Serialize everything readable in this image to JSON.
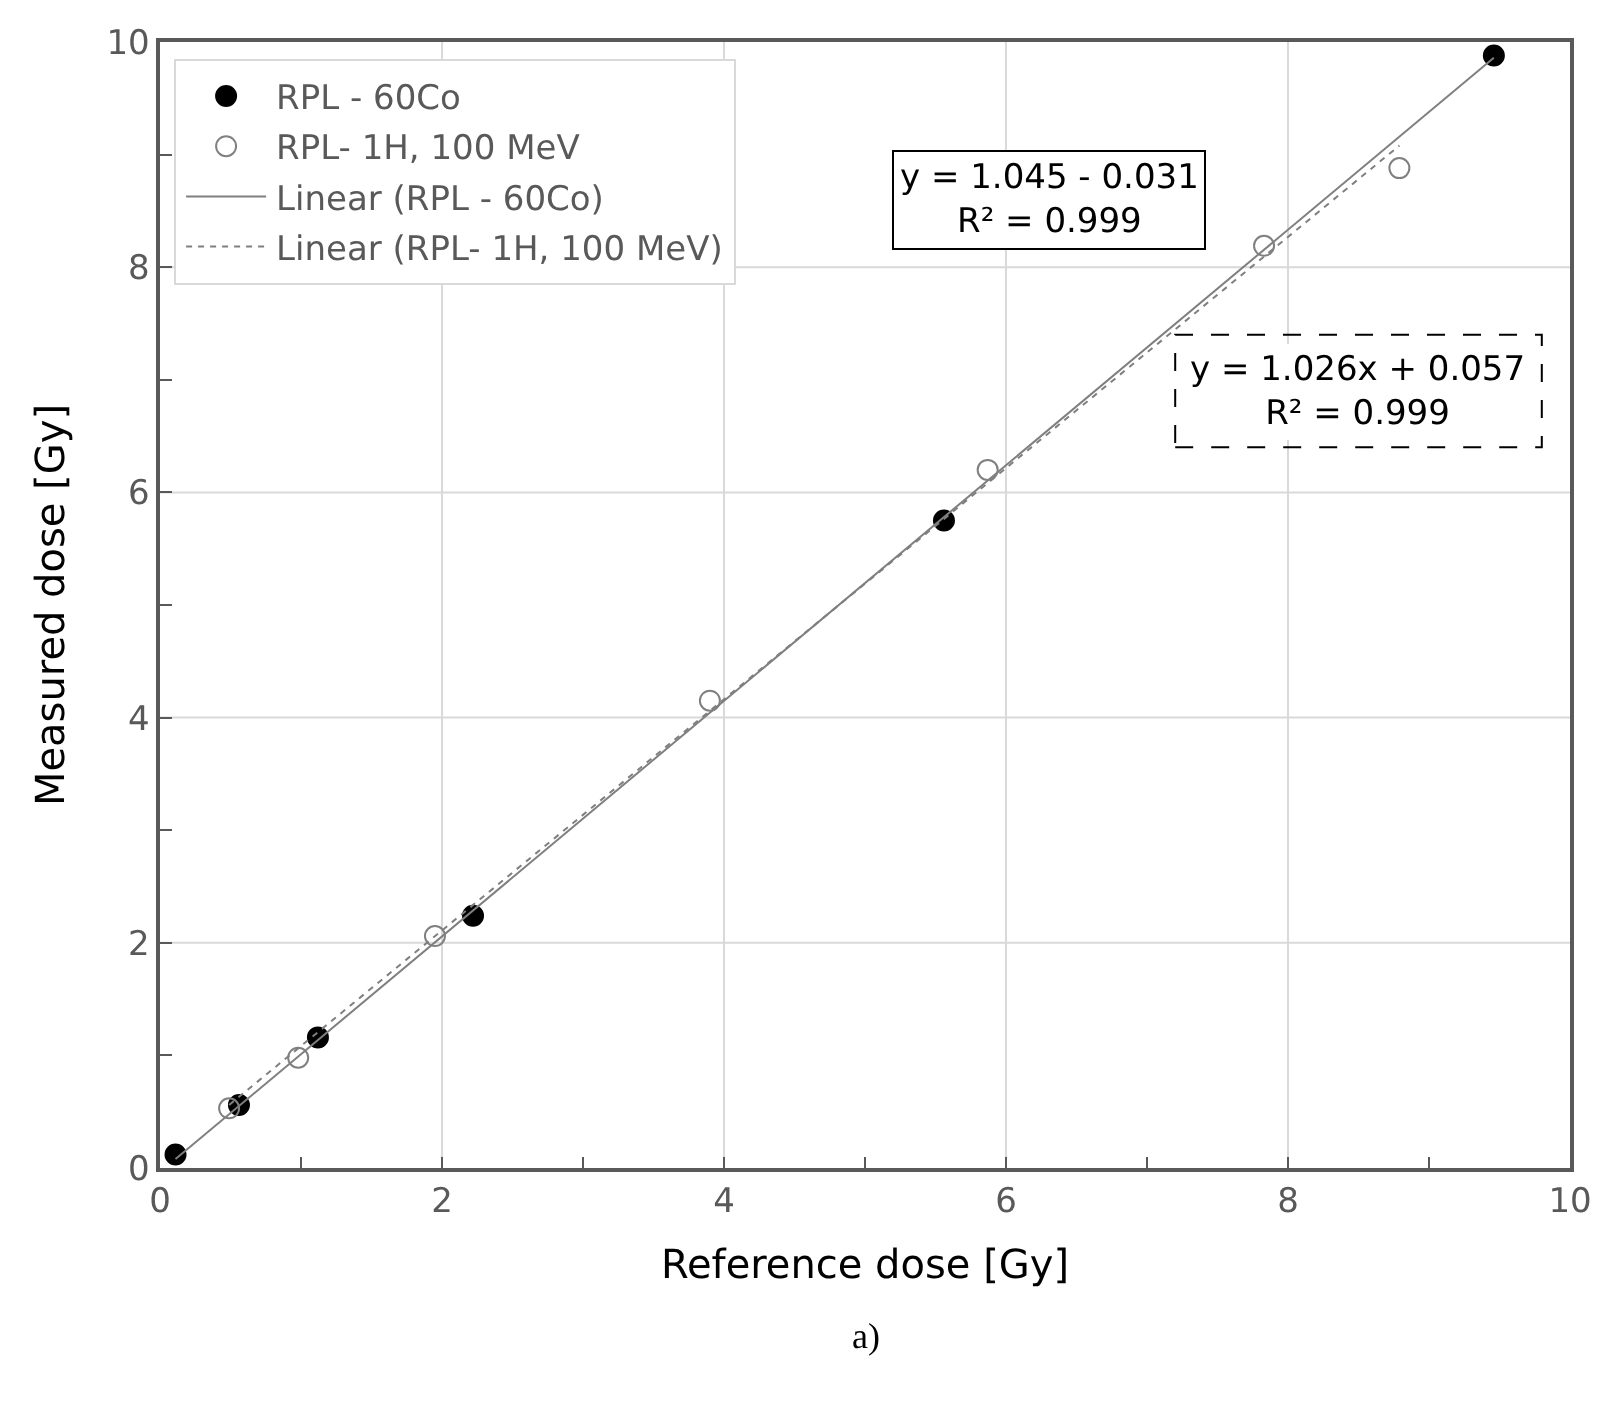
{
  "chart_data": {
    "type": "scatter",
    "xlabel": "Reference dose [Gy]",
    "ylabel": "Measured dose [Gy]",
    "xlim": [
      0,
      10
    ],
    "ylim": [
      0,
      10
    ],
    "xticks": [
      0,
      {
        "value": 1,
        "label": null
      },
      2,
      {
        "value": 3,
        "label": null
      },
      4,
      {
        "value": 5,
        "label": null
      },
      6,
      {
        "value": 7,
        "label": null
      },
      8,
      {
        "value": 9,
        "label": null
      },
      10
    ],
    "yticks": [
      0,
      {
        "value": 1,
        "label": null
      },
      2,
      {
        "value": 3,
        "label": null
      },
      4,
      {
        "value": 5,
        "label": null
      },
      6,
      {
        "value": 7,
        "label": null
      },
      8,
      {
        "value": 9,
        "label": null
      },
      10
    ],
    "grid": true,
    "legend": "top left",
    "series": [
      {
        "name": "RPL - 60Co",
        "marker": "circle",
        "color": "#000000",
        "x": [
          0.11,
          0.56,
          1.12,
          2.22,
          5.56,
          9.46
        ],
        "values": [
          0.12,
          0.56,
          1.16,
          2.24,
          5.75,
          9.88
        ]
      },
      {
        "name": "RPL- 1H, 100 MeV",
        "marker": "circle",
        "color": "#808080",
        "x": [
          0.49,
          0.98,
          1.95,
          3.9,
          5.87,
          7.83,
          8.79
        ],
        "values": [
          0.53,
          0.98,
          2.06,
          4.15,
          6.2,
          8.19,
          8.88
        ]
      },
      {
        "name": "Linear (RPL - 60Co)",
        "type": "line",
        "line_style": "solid",
        "color": "#7f7f7f",
        "x": [
          0.11,
          9.46
        ],
        "values": [
          0.08,
          9.86
        ]
      },
      {
        "name": "Linear (RPL- 1H, 100 MeV)",
        "type": "line",
        "line_style": "dotted",
        "color": "#7f7f7f",
        "x": [
          0.49,
          8.79
        ],
        "values": [
          0.56,
          9.08
        ]
      }
    ],
    "annotations": [
      "y = 1.045 - 0.031\nR² = 0.999",
      "y = 1.026x + 0.057\nR² = 0.999",
      "a)"
    ]
  }
}
